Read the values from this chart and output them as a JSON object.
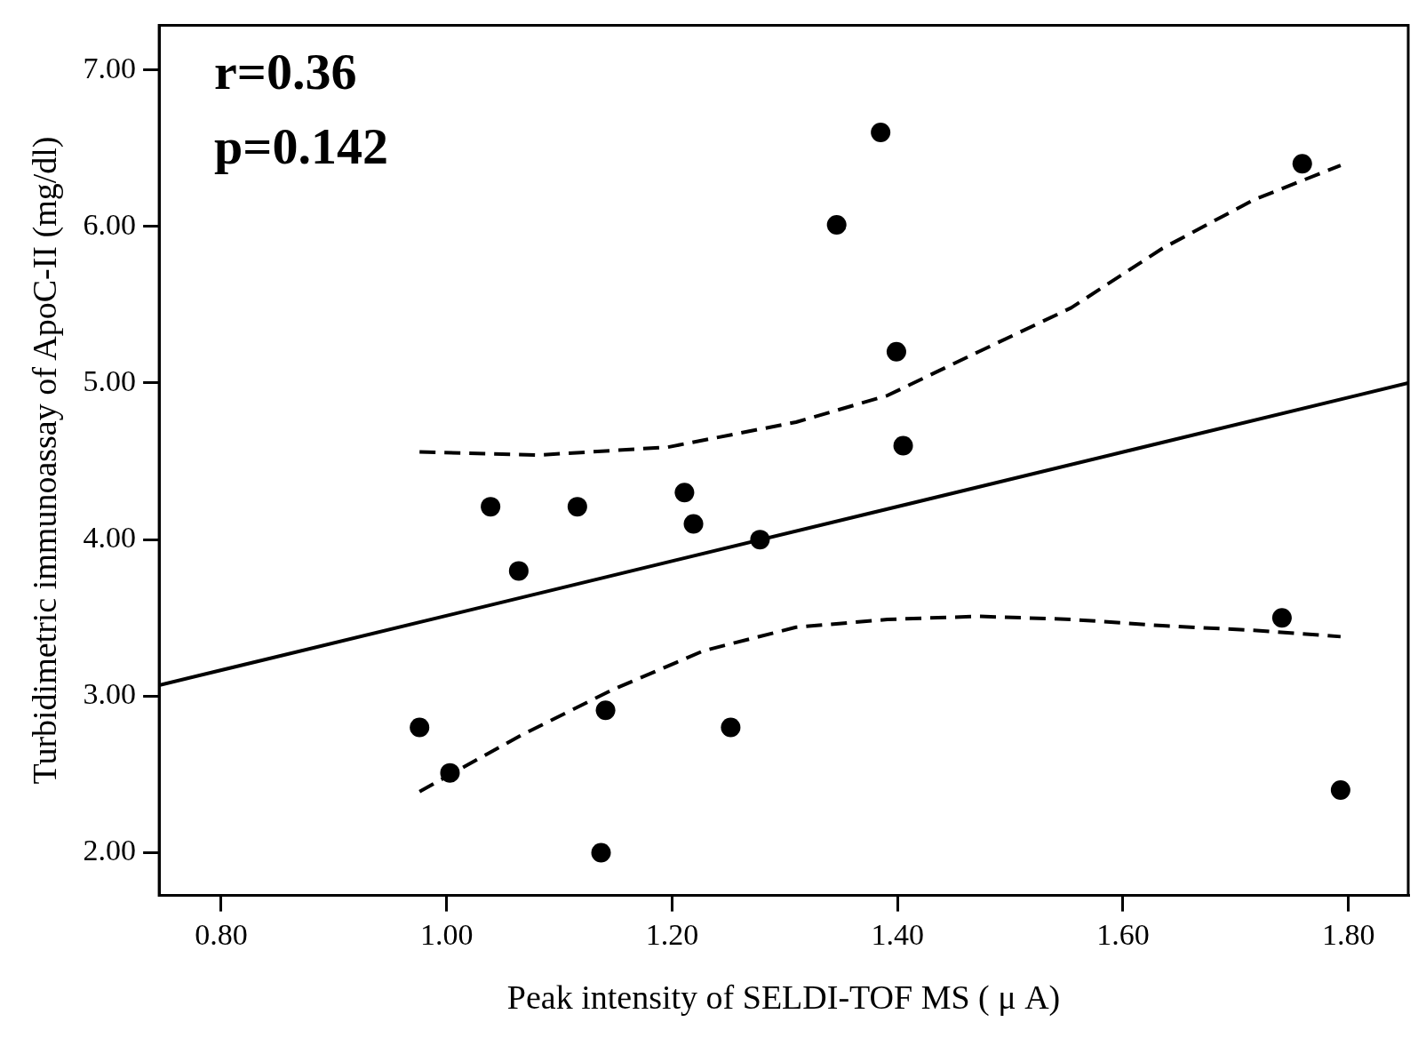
{
  "chart_data": {
    "type": "scatter",
    "xlabel": "Peak intensity of SELDI-TOF MS ( μ A)",
    "ylabel": "Turbidimetric immunoassay of ApoC-II (mg/dl)",
    "annotations": [
      "r=0.36",
      "p=0.142"
    ],
    "xlim": [
      0.745,
      1.853
    ],
    "ylim": [
      1.727,
      7.285
    ],
    "xticks": [
      {
        "value": 0.8,
        "label": "0.80"
      },
      {
        "value": 1.0,
        "label": "1.00"
      },
      {
        "value": 1.2,
        "label": "1.20"
      },
      {
        "value": 1.4,
        "label": "1.40"
      },
      {
        "value": 1.6,
        "label": "1.60"
      },
      {
        "value": 1.8,
        "label": "1.80"
      }
    ],
    "yticks": [
      {
        "value": 2,
        "label": "2.00"
      },
      {
        "value": 3,
        "label": "3.00"
      },
      {
        "value": 4,
        "label": "4.00"
      },
      {
        "value": 5,
        "label": "5.00"
      },
      {
        "value": 6,
        "label": "6.00"
      },
      {
        "value": 7,
        "label": "7.00"
      }
    ],
    "grid": false,
    "legend": false,
    "series": [
      {
        "type": "scatter",
        "color": "#000000",
        "marker": "circle",
        "x": [
          0.976,
          1.003,
          1.039,
          1.064,
          1.116,
          1.137,
          1.141,
          1.211,
          1.219,
          1.252,
          1.278,
          1.346,
          1.385,
          1.399,
          1.405,
          1.741,
          1.759,
          1.793
        ],
        "values": [
          2.8,
          2.51,
          4.21,
          3.8,
          4.21,
          2.0,
          2.91,
          4.3,
          4.1,
          2.8,
          4.0,
          6.01,
          6.6,
          5.2,
          4.6,
          3.5,
          6.4,
          2.4
        ]
      },
      {
        "type": "line",
        "color": "#000000",
        "marker": "none",
        "line_style": "solid",
        "x": [
          0.745,
          1.853
        ],
        "values": [
          3.07,
          5.0
        ]
      },
      {
        "type": "line",
        "color": "#000000",
        "marker": "none",
        "line_style": "dashed",
        "x": [
          0.976,
          1.082,
          1.196,
          1.31,
          1.391,
          1.472,
          1.554,
          1.635,
          1.716,
          1.793
        ],
        "values": [
          4.56,
          4.54,
          4.59,
          4.75,
          4.92,
          5.2,
          5.48,
          5.86,
          6.17,
          6.39
        ]
      },
      {
        "type": "line",
        "color": "#000000",
        "marker": "none",
        "line_style": "dashed",
        "x": [
          0.976,
          1.066,
          1.147,
          1.228,
          1.31,
          1.391,
          1.472,
          1.554,
          1.635,
          1.716,
          1.793
        ],
        "values": [
          2.39,
          2.75,
          3.04,
          3.29,
          3.44,
          3.49,
          3.51,
          3.49,
          3.45,
          3.42,
          3.38
        ]
      }
    ]
  }
}
